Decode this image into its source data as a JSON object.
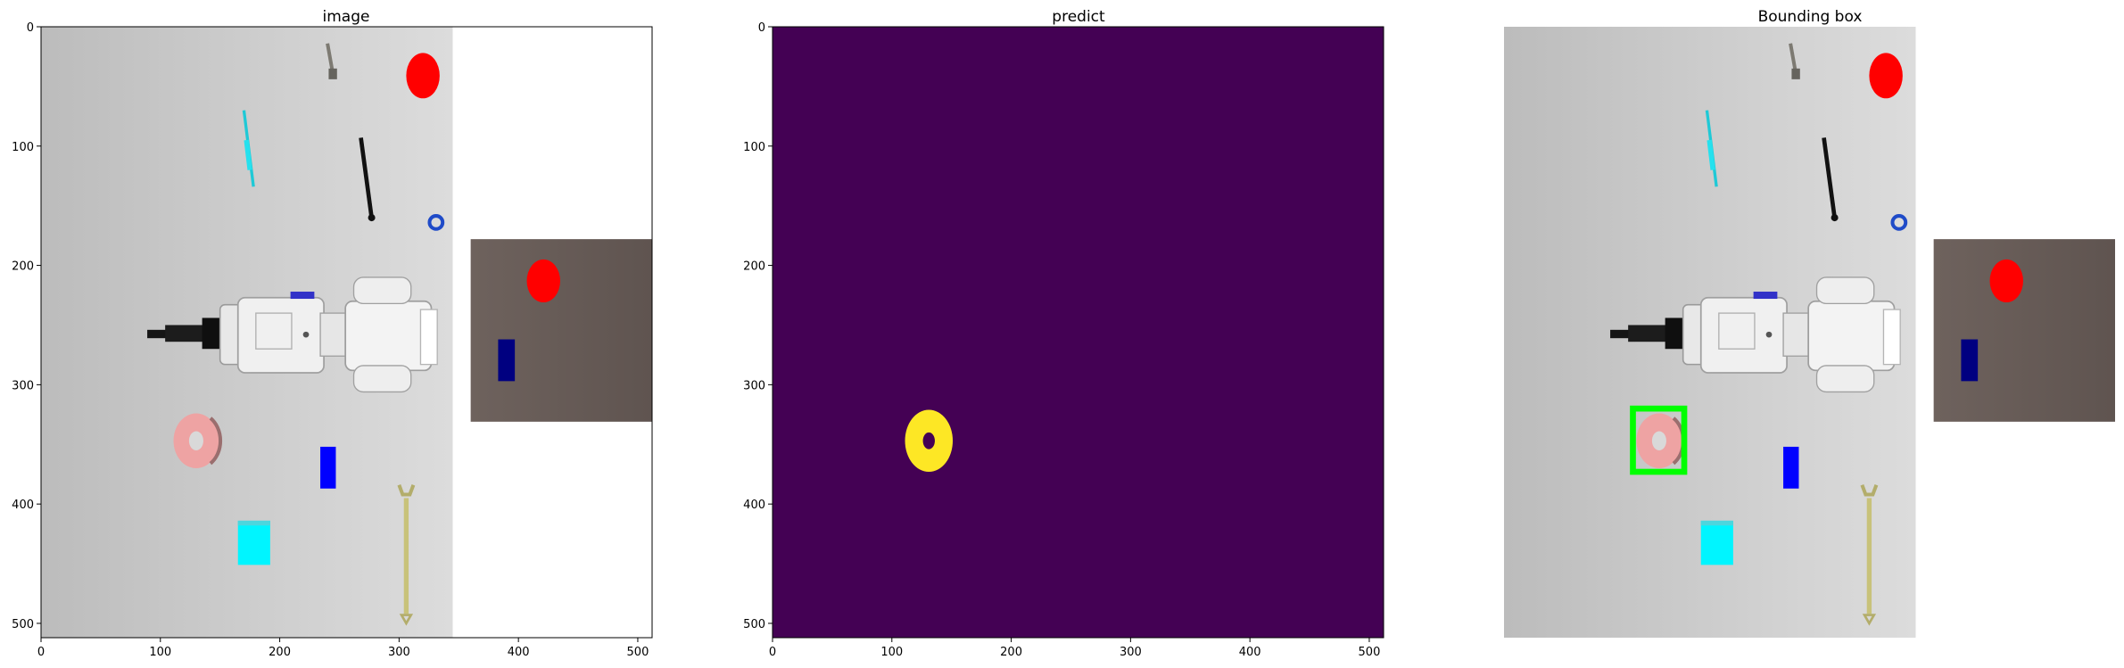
{
  "panels": [
    {
      "title": "image"
    },
    {
      "title": "predict"
    },
    {
      "title": "Bounding box"
    }
  ],
  "axes": {
    "x_ticks": [
      "0",
      "100",
      "200",
      "300",
      "400",
      "500"
    ],
    "y_ticks": [
      "0",
      "100",
      "200",
      "300",
      "400",
      "500"
    ],
    "extent": [
      0,
      512
    ]
  },
  "colors": {
    "predict_background": "#440154",
    "predict_mask": "#fde725",
    "bounding_box": "#00ff00",
    "tray": "#6b5d58",
    "red_disc": "#ff0000",
    "navy_block": "#000080",
    "blue_bar": "#0000ff",
    "cyan_cube": "#00ffff",
    "pink_washer": "#eea3a3",
    "wrench": "#c8c27a"
  },
  "scene": {
    "objects": [
      "red-disc",
      "screw",
      "cyan-screwdriver",
      "black-rod",
      "blue-hex-nut",
      "robot-gripper",
      "tray",
      "pink-washer",
      "blue-bar",
      "cyan-cube",
      "wrench"
    ],
    "detected_object": "pink-washer"
  }
}
